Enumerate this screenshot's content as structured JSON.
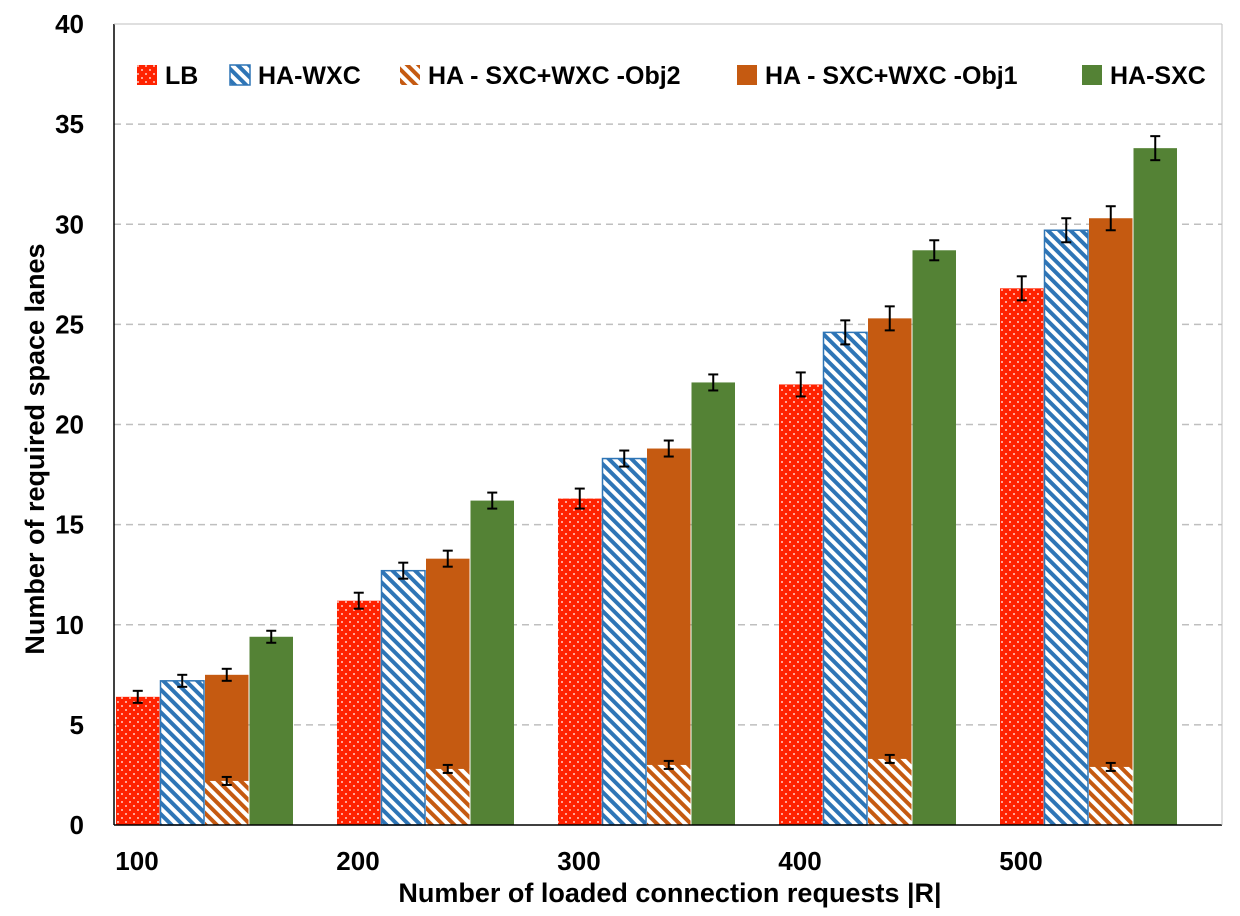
{
  "chart_data": {
    "type": "bar",
    "title": "",
    "xlabel": "Number of loaded connection requests |R|",
    "ylabel": "Number of required space lanes",
    "categories": [
      "100",
      "200",
      "300",
      "400",
      "500"
    ],
    "ylim": [
      0,
      40
    ],
    "yticks": [
      "0",
      "5",
      "10",
      "15",
      "20",
      "25",
      "30",
      "35",
      "40"
    ],
    "grid": "horizontal dashed",
    "legend_position": "top",
    "series": [
      {
        "name": "LB",
        "values": [
          6.4,
          11.2,
          16.3,
          22.0,
          26.8
        ],
        "errors": [
          0.3,
          0.4,
          0.5,
          0.6,
          0.6
        ],
        "color": "#ff2200",
        "pattern": "dots"
      },
      {
        "name": "HA-WXC",
        "values": [
          7.2,
          12.7,
          18.3,
          24.6,
          29.7
        ],
        "errors": [
          0.3,
          0.4,
          0.4,
          0.6,
          0.6
        ],
        "color": "#2e75b6",
        "pattern": "hatch"
      },
      {
        "name": "HA - SXC+WXC -Obj2",
        "values": [
          2.2,
          2.8,
          3.0,
          3.3,
          2.9
        ],
        "errors": [
          0.2,
          0.2,
          0.2,
          0.2,
          0.2
        ],
        "color": "#c55a11",
        "pattern": "hatch"
      },
      {
        "name": "HA - SXC+WXC -Obj1",
        "values": [
          7.5,
          13.3,
          18.8,
          25.3,
          30.3
        ],
        "errors": [
          0.3,
          0.4,
          0.4,
          0.6,
          0.6
        ],
        "color": "#c55a11",
        "pattern": "solid"
      },
      {
        "name": "HA-SXC",
        "values": [
          9.4,
          16.2,
          22.1,
          28.7,
          33.8
        ],
        "errors": [
          0.3,
          0.4,
          0.4,
          0.5,
          0.6
        ],
        "color": "#548235",
        "pattern": "solid"
      }
    ],
    "overlay_note_series_index": 2
  }
}
